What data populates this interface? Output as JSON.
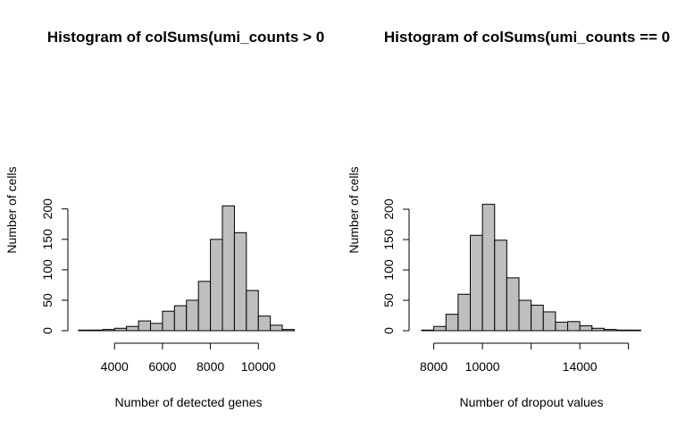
{
  "chart_data": [
    {
      "type": "bar",
      "title": "Histogram of colSums(umi_counts > 0",
      "xlabel": "Number of detected genes",
      "ylabel": "Number of cells",
      "bin_start": 2500,
      "bin_width": 500,
      "values": [
        1,
        1,
        2,
        4,
        7,
        16,
        12,
        32,
        41,
        50,
        81,
        150,
        205,
        161,
        66,
        24,
        9,
        2
      ],
      "xticks": [
        4000,
        6000,
        8000,
        10000
      ],
      "xtick_labels": [
        "4000",
        "6000",
        "8000",
        "10000"
      ],
      "yticks": [
        0,
        50,
        100,
        150,
        200
      ],
      "ytick_labels": [
        "0",
        "50",
        "100",
        "150",
        "200"
      ],
      "bar_color": "#bebebe"
    },
    {
      "type": "bar",
      "title": "Histogram of colSums(umi_counts == 0",
      "xlabel": "Number of dropout values",
      "ylabel": "Number of cells",
      "bin_start": 7500,
      "bin_width": 500,
      "values": [
        1,
        7,
        27,
        60,
        157,
        208,
        149,
        87,
        50,
        42,
        31,
        14,
        15,
        8,
        4,
        2,
        1,
        1
      ],
      "xticks": [
        8000,
        10000,
        12000,
        14000,
        16000
      ],
      "xtick_labels": [
        "8000",
        "10000",
        "",
        "14000",
        ""
      ],
      "yticks": [
        0,
        50,
        100,
        150,
        200
      ],
      "ytick_labels": [
        "0",
        "50",
        "100",
        "150",
        "200"
      ],
      "bar_color": "#bebebe"
    }
  ]
}
